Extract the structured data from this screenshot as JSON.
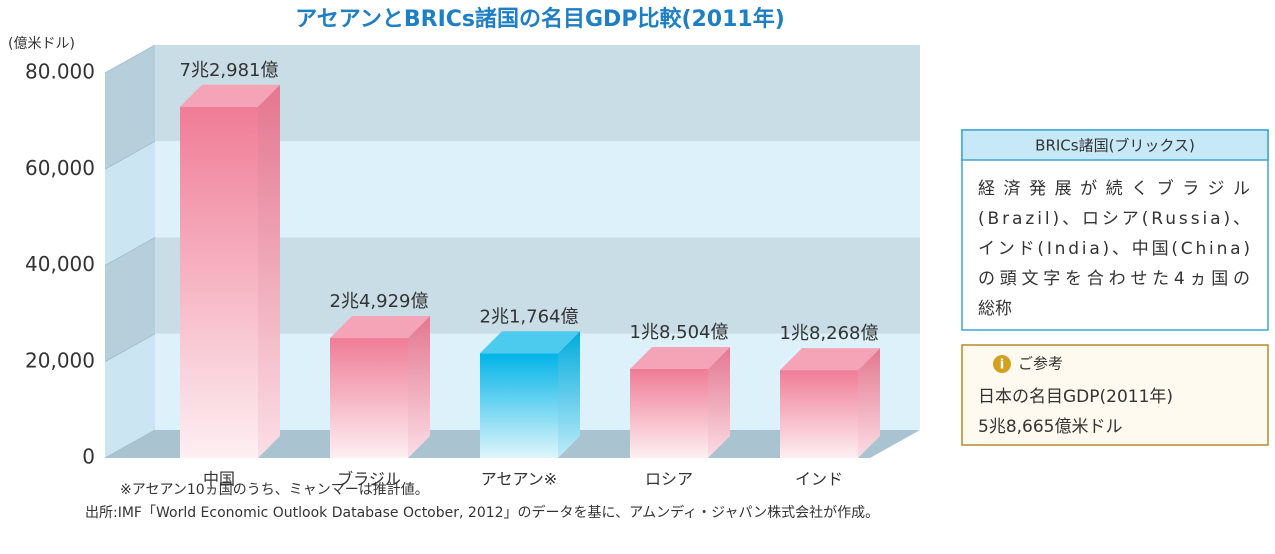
{
  "chart_data": {
    "type": "bar3d",
    "title": "アセアンとBRICs諸国の名目GDP比較(2011年)",
    "y_label": "(億米ドル)",
    "categories": [
      "中国",
      "ブラジル",
      "アセアン※",
      "ロシア",
      "インド"
    ],
    "values": [
      72981,
      24929,
      21764,
      18504,
      18268
    ],
    "value_labels": [
      "7兆2,981億",
      "2兆4,929億",
      "2兆1,764億",
      "1兆8,504億",
      "1兆8,268億"
    ],
    "colors": [
      "#f07c96",
      "#f07c96",
      "#00b4e8",
      "#f07c96",
      "#f07c96"
    ],
    "ylim": [
      0,
      80000
    ],
    "yticks": [
      0,
      {
        "value": 20000,
        "label": "20,000"
      },
      {
        "value": 40000,
        "label": "40,000"
      },
      {
        "value": 60000,
        "label": "60,000"
      },
      {
        "value": 80000,
        "label": "80.000"
      }
    ],
    "grid": true,
    "footnotes": [
      "※アセアン10ヵ国のうち、ミャンマーは推計値。",
      "出所:IMF「World Economic Outlook Database October, 2012」のデータを基に、アムンディ・ジャパン株式会社が作成。"
    ]
  },
  "info_box": {
    "title": "BRICs諸国(ブリックス)",
    "lines": [
      "経済発展が続くブラジル",
      "(Brazil)、ロシア(Russia)、",
      "インド(India)、中国(China)",
      "の頭文字を合わせた4ヵ国の",
      "総称"
    ]
  },
  "reference_box": {
    "title": "ご参考",
    "lines": [
      "日本の名目GDP(2011年)",
      "5兆8,665億米ドル"
    ]
  }
}
